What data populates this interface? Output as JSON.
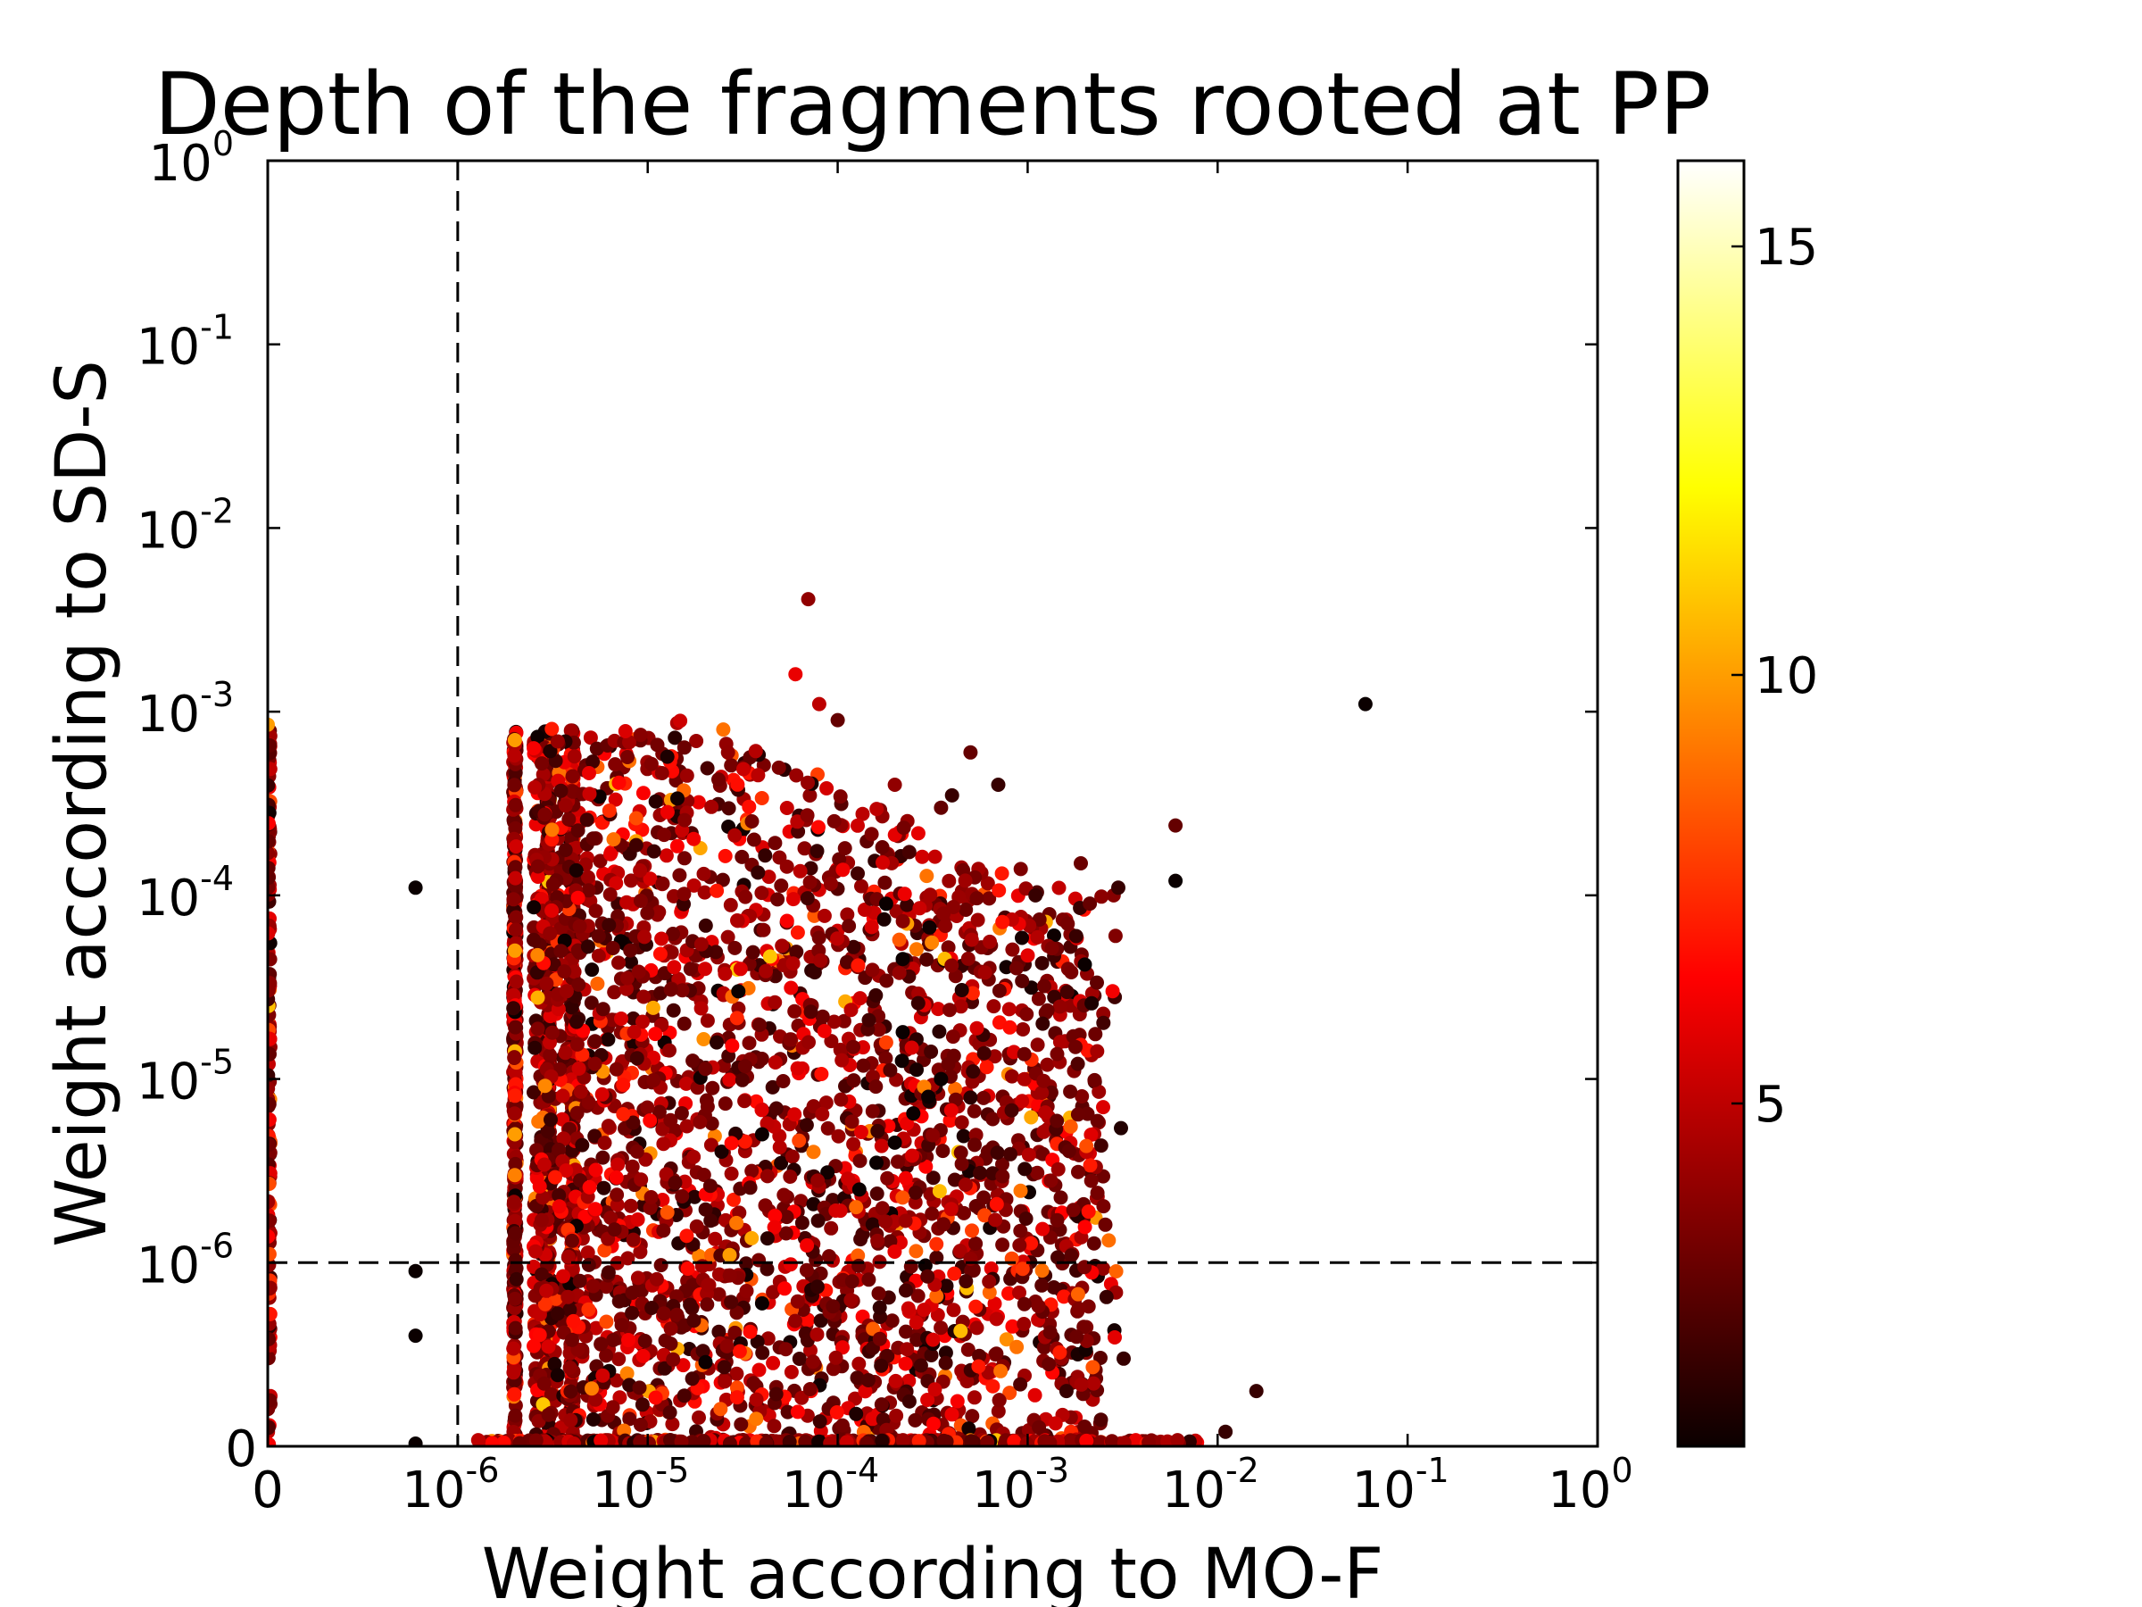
{
  "chart_data": {
    "type": "scatter",
    "title": "Depth of the fragments rooted at PP",
    "xlabel": "Weight according to MO-F",
    "ylabel": "Weight according to SD-S",
    "x_scale": "symlog",
    "y_scale": "symlog",
    "xlim": [
      0,
      1
    ],
    "ylim": [
      0,
      1
    ],
    "x_ticks": [
      {
        "value": 0,
        "base": "0",
        "exp": ""
      },
      {
        "value": 1e-06,
        "base": "10",
        "exp": "-6"
      },
      {
        "value": 1e-05,
        "base": "10",
        "exp": "-5"
      },
      {
        "value": 0.0001,
        "base": "10",
        "exp": "-4"
      },
      {
        "value": 0.001,
        "base": "10",
        "exp": "-3"
      },
      {
        "value": 0.01,
        "base": "10",
        "exp": "-2"
      },
      {
        "value": 0.1,
        "base": "10",
        "exp": "-1"
      },
      {
        "value": 1,
        "base": "10",
        "exp": "0"
      }
    ],
    "y_ticks": [
      {
        "value": 0,
        "base": "0",
        "exp": ""
      },
      {
        "value": 1e-06,
        "base": "10",
        "exp": "-6"
      },
      {
        "value": 1e-05,
        "base": "10",
        "exp": "-5"
      },
      {
        "value": 0.0001,
        "base": "10",
        "exp": "-4"
      },
      {
        "value": 0.001,
        "base": "10",
        "exp": "-3"
      },
      {
        "value": 0.01,
        "base": "10",
        "exp": "-2"
      },
      {
        "value": 0.1,
        "base": "10",
        "exp": "-1"
      },
      {
        "value": 1,
        "base": "10",
        "exp": "0"
      }
    ],
    "reference_lines": [
      {
        "axis": "x",
        "value": 1e-06,
        "style": "dashed"
      },
      {
        "axis": "y",
        "value": 1e-06,
        "style": "dashed"
      }
    ],
    "grid": false,
    "colorbar": {
      "colormap": "hot",
      "range": [
        1,
        16
      ],
      "ticks": [
        5,
        10,
        15
      ],
      "labels": [
        "5",
        "10",
        "15"
      ]
    },
    "series": [
      {
        "points": [
          {
            "x": 0.06,
            "y": 0.0011,
            "c": 1
          },
          {
            "x": 6e-07,
            "y": 0.00011,
            "c": 1
          },
          {
            "x": 6e-07,
            "y": 9e-07,
            "c": 1
          },
          {
            "x": 6e-07,
            "y": 4e-07,
            "c": 1
          },
          {
            "x": 6e-07,
            "y": 0,
            "c": 1
          },
          {
            "x": 0.006,
            "y": 0.00012,
            "c": 1
          },
          {
            "x": 0.006,
            "y": 0.00024,
            "c": 3
          },
          {
            "x": 0.002,
            "y": 4.2e-05,
            "c": 1
          },
          {
            "x": 0.0018,
            "y": 6e-05,
            "c": 2
          },
          {
            "x": 0.003,
            "y": 0.00011,
            "c": 2
          },
          {
            "x": 0.0011,
            "y": 0.0001,
            "c": 2
          },
          {
            "x": 0.0012,
            "y": 2e-05,
            "c": 2
          },
          {
            "x": 0.0008,
            "y": 2.4e-05,
            "c": 5
          },
          {
            "x": 0.0026,
            "y": 6.5e-07,
            "c": 2
          },
          {
            "x": 0.0032,
            "y": 3e-07,
            "c": 2
          },
          {
            "x": 0.0016,
            "y": 2e-07,
            "c": 2
          },
          {
            "x": 0.016,
            "y": 2e-07,
            "c": 2
          },
          {
            "x": 0.011,
            "y": 1.2e-07,
            "c": 2
          },
          {
            "x": 0.0005,
            "y": 1.05e-06,
            "c": 4
          },
          {
            "x": 0.00035,
            "y": 1e-05,
            "c": 1
          },
          {
            "x": 0.0003,
            "y": 8e-06,
            "c": 1
          },
          {
            "x": 0.00025,
            "y": 6.5e-06,
            "c": 1
          },
          {
            "x": 0.0002,
            "y": 4.5e-06,
            "c": 1
          },
          {
            "x": 0.00016,
            "y": 3.5e-06,
            "c": 1
          },
          {
            "x": 0.00013,
            "y": 2.5e-06,
            "c": 1
          },
          {
            "x": 0.00022,
            "y": 4.5e-05,
            "c": 1
          },
          {
            "x": 0.00018,
            "y": 9e-05,
            "c": 1
          },
          {
            "x": 0.00022,
            "y": 1.8e-05,
            "c": 1
          },
          {
            "x": 7e-05,
            "y": 0.0041,
            "c": 4
          },
          {
            "x": 6e-05,
            "y": 0.0016,
            "c": 6
          },
          {
            "x": 8e-05,
            "y": 0.0011,
            "c": 5
          },
          {
            "x": 0.0001,
            "y": 0.0009,
            "c": 3
          },
          {
            "x": 0.0002,
            "y": 0.0004,
            "c": 4
          },
          {
            "x": 0.00035,
            "y": 0.0003,
            "c": 3
          },
          {
            "x": 0.0005,
            "y": 0.0006,
            "c": 3
          },
          {
            "x": 0.0007,
            "y": 0.0004,
            "c": 2
          },
          {
            "x": 0.0004,
            "y": 0.00035,
            "c": 2
          },
          {
            "x": 2.7e-05,
            "y": 1.1e-06,
            "c": 10
          },
          {
            "x": 2.5e-05,
            "y": 0.0008,
            "c": 9
          },
          {
            "x": 0,
            "y": 0.00085,
            "c": 10
          },
          {
            "x": 2e-06,
            "y": 0.0007,
            "c": 10
          },
          {
            "x": 2e-06,
            "y": 5e-05,
            "c": 10
          },
          {
            "x": 2e-06,
            "y": 5e-06,
            "c": 10
          },
          {
            "x": 3e-05,
            "y": 3e-05,
            "c": 1
          },
          {
            "x": 4e-05,
            "y": 5e-06,
            "c": 1
          },
          {
            "x": 4e-05,
            "y": 6e-07,
            "c": 1
          }
        ],
        "band_note": "dense cloud of several thousand points, 2e-6 <= x <= 3e-3, 0 <= y <= 1e-3"
      }
    ]
  }
}
